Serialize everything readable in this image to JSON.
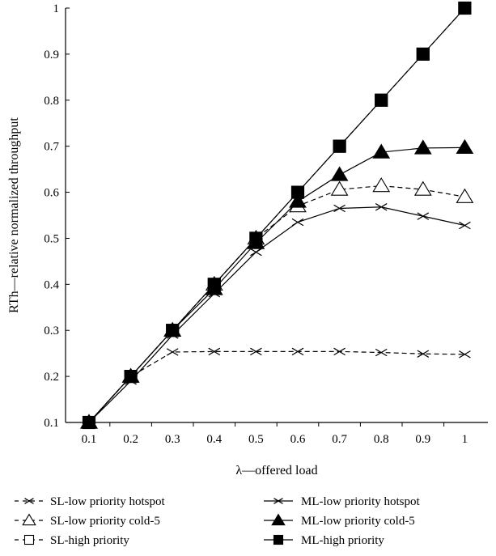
{
  "chart_data": {
    "type": "line",
    "title": "",
    "xlabel": "λ—offered load",
    "ylabel": "RTh—relative normalized throughput",
    "ylim": [
      0.1,
      1.0
    ],
    "x_ticks": [
      "0.1",
      "0.2",
      "0.3",
      "0.4",
      "0.5",
      "0.6",
      "0.7",
      "0.8",
      "0.9",
      "1"
    ],
    "y_ticks": [
      "0.1",
      "0.2",
      "0.3",
      "0.4",
      "0.5",
      "0.6",
      "0.7",
      "0.8",
      "0.9",
      "1"
    ],
    "x": [
      0.1,
      0.2,
      0.3,
      0.4,
      0.5,
      0.6,
      0.7,
      0.8,
      0.9,
      1.0
    ],
    "grid": false,
    "legend_placement": "bottom",
    "series": [
      {
        "name": "SL-low priority hotspot",
        "marker": "x",
        "dashed": true,
        "values": [
          0.1,
          0.2,
          0.253,
          0.254,
          0.254,
          0.254,
          0.254,
          0.252,
          0.249,
          0.248
        ]
      },
      {
        "name": "SL-low priority cold-5",
        "marker": "triangle-open",
        "dashed": true,
        "values": [
          0.1,
          0.2,
          0.3,
          0.4,
          0.5,
          0.57,
          0.606,
          0.614,
          0.606,
          0.59
        ]
      },
      {
        "name": "SL-high priority",
        "marker": "square-open",
        "dashed": true,
        "values": [
          0.1,
          0.2,
          0.3,
          0.4,
          0.5,
          0.6,
          0.7,
          0.8,
          0.9,
          1.0
        ]
      },
      {
        "name": "ML-low priority hotspot",
        "marker": "x",
        "dashed": false,
        "values": [
          0.1,
          0.19,
          0.29,
          0.38,
          0.47,
          0.535,
          0.565,
          0.568,
          0.548,
          0.528
        ]
      },
      {
        "name": "ML-low priority cold-5",
        "marker": "triangle-filled",
        "dashed": false,
        "values": [
          0.1,
          0.2,
          0.3,
          0.39,
          0.49,
          0.58,
          0.638,
          0.687,
          0.696,
          0.697
        ]
      },
      {
        "name": "ML-high priority",
        "marker": "square-filled",
        "dashed": false,
        "values": [
          0.1,
          0.2,
          0.3,
          0.4,
          0.5,
          0.6,
          0.7,
          0.8,
          0.9,
          1.0
        ]
      }
    ]
  }
}
